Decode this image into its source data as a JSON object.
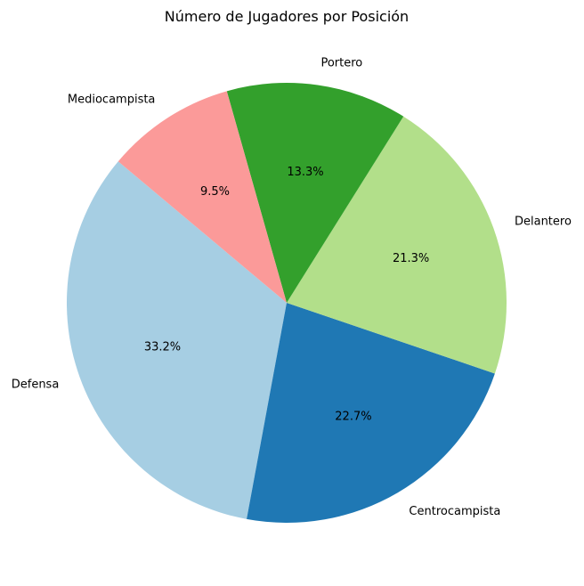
{
  "chart_data": {
    "type": "pie",
    "title": "Número de Jugadores por Posición",
    "slices": [
      {
        "label": "Defensa",
        "value": 33.2,
        "pct_label": "33.2%",
        "color": "#a6cee3"
      },
      {
        "label": "Centrocampista",
        "value": 22.7,
        "pct_label": "22.7%",
        "color": "#1f78b4"
      },
      {
        "label": "Delantero",
        "value": 21.3,
        "pct_label": "21.3%",
        "color": "#b2df8a"
      },
      {
        "label": "Portero",
        "value": 13.3,
        "pct_label": "13.3%",
        "color": "#33a02c"
      },
      {
        "label": "Mediocampista",
        "value": 9.5,
        "pct_label": "9.5%",
        "color": "#fb9a99"
      }
    ],
    "start_angle_deg": 140,
    "direction": "counterclockwise",
    "legend": "none",
    "grid": false
  }
}
